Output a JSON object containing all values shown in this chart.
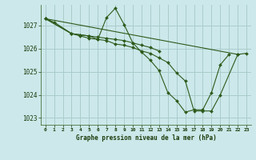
{
  "title": "Graphe pression niveau de la mer (hPa)",
  "background_color": "#cce8ea",
  "grid_color": "#aacccc",
  "line_color": "#2d5a1b",
  "marker_color": "#2d5a1b",
  "x_labels": [
    "0",
    "1",
    "2",
    "3",
    "4",
    "5",
    "6",
    "7",
    "8",
    "9",
    "10",
    "11",
    "12",
    "13",
    "14",
    "15",
    "16",
    "17",
    "18",
    "19",
    "20",
    "21",
    "22",
    "23"
  ],
  "ylim": [
    1022.7,
    1027.9
  ],
  "yticks": [
    1023,
    1024,
    1025,
    1026,
    1027
  ],
  "series": [
    [
      1027.3,
      1027.15,
      null,
      1026.65,
      1026.6,
      1026.55,
      1026.5,
      1026.45,
      1026.4,
      1026.35,
      1026.25,
      1026.15,
      1026.05,
      1025.9,
      null,
      null,
      null,
      null,
      null,
      null,
      null,
      null,
      null,
      null
    ],
    [
      1027.3,
      null,
      null,
      1026.65,
      1026.6,
      1026.55,
      1026.4,
      1027.35,
      1027.75,
      1027.05,
      1026.25,
      1025.85,
      1025.5,
      1025.05,
      1024.1,
      1023.75,
      1023.25,
      1023.35,
      1023.35,
      1024.1,
      1025.3,
      1025.75,
      null,
      null
    ],
    [
      1027.3,
      null,
      null,
      1026.65,
      1026.55,
      1026.45,
      1026.4,
      1026.35,
      1026.2,
      1026.15,
      1026.05,
      1025.9,
      1025.8,
      1025.6,
      1025.4,
      1024.95,
      1024.6,
      1023.3,
      1023.3,
      1023.3,
      1024.0,
      null,
      1025.75,
      null
    ],
    [
      1027.3,
      null,
      null,
      null,
      null,
      null,
      null,
      null,
      null,
      null,
      null,
      null,
      null,
      null,
      null,
      null,
      null,
      null,
      null,
      null,
      null,
      null,
      1025.75,
      1025.8
    ]
  ]
}
